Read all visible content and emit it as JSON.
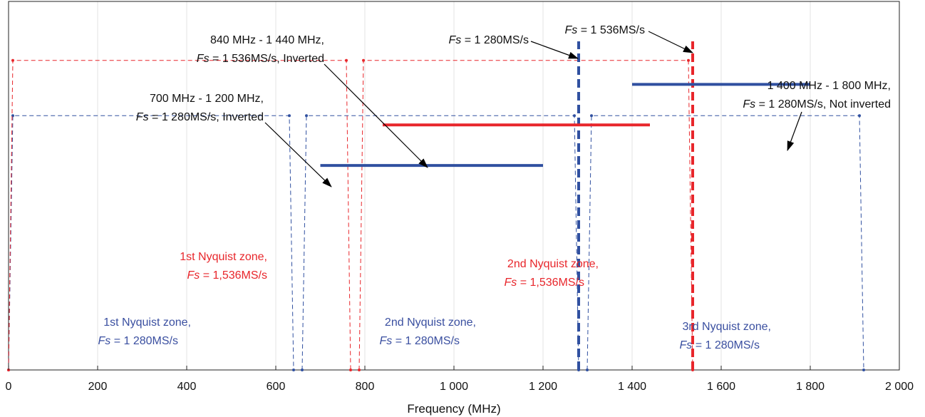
{
  "chart_data": {
    "type": "line",
    "xlabel": "Frequency (MHz)",
    "xlim": [
      0,
      2000
    ],
    "ylim": [
      0,
      1
    ],
    "x_ticks": [
      "0",
      "200",
      "400",
      "600",
      "800",
      "1 000",
      "1 200",
      "1 400",
      "1 600",
      "1 800",
      "2 000"
    ],
    "x_tick_values": [
      0,
      200,
      400,
      600,
      800,
      1000,
      1200,
      1400,
      1600,
      1800,
      2000
    ],
    "grid": true,
    "colors": {
      "blue": "#3050a0",
      "red": "#e8262b",
      "blue_text": "#3a4fa0",
      "red_text": "#e8262b"
    },
    "nyquist_zones": {
      "fs_1280": {
        "color": "blue",
        "level": 0.69,
        "edges": [
          0,
          640,
          1280,
          1920
        ]
      },
      "fs_1536": {
        "color": "red",
        "level": 0.84,
        "edges": [
          0,
          768,
          1536
        ]
      }
    },
    "sample_rate_lines": [
      {
        "x": 1280,
        "color": "blue"
      },
      {
        "x": 1536,
        "color": "red"
      }
    ],
    "bands": [
      {
        "x_start": 700,
        "x_end": 1200,
        "y": 0.555,
        "color": "blue"
      },
      {
        "x_start": 840,
        "x_end": 1440,
        "y": 0.665,
        "color": "red"
      },
      {
        "x_start": 1400,
        "x_end": 1800,
        "y": 0.775,
        "color": "blue"
      }
    ],
    "annotations": {
      "fs1280_label": {
        "italic": "Fs",
        "rest": " = 1 280MS/s"
      },
      "fs1536_label": {
        "italic": "Fs",
        "rest": " = 1 536MS/s"
      },
      "band_840": {
        "line1": "840 MHz - 1 440 MHz,",
        "italic": "Fs",
        "rest": " = 1 536MS/s, Inverted"
      },
      "band_700": {
        "line1": "700 MHz - 1 200 MHz,",
        "italic": "Fs",
        "rest": " = 1 280MS/s, Inverted"
      },
      "band_1400": {
        "line1": "1 400 MHz - 1 800 MHz,",
        "italic": "Fs",
        "rest": " = 1 280MS/s, Not inverted"
      },
      "zone1_red": {
        "line1": "1st Nyquist zone,",
        "italic": "Fs",
        "rest": " = 1,536MS/s"
      },
      "zone2_red": {
        "line1": "2nd Nyquist zone,",
        "italic": "Fs",
        "rest": " = 1,536MS/s"
      },
      "zone1_blue": {
        "line1": "1st Nyquist zone,",
        "italic": "Fs",
        "rest": " = 1 280MS/s"
      },
      "zone2_blue": {
        "line1": "2nd Nyquist zone,",
        "italic": "Fs",
        "rest": " = 1 280MS/s"
      },
      "zone3_blue": {
        "line1": "3rd Nyquist zone,",
        "italic": "Fs",
        "rest": " = 1 280MS/s"
      }
    }
  }
}
